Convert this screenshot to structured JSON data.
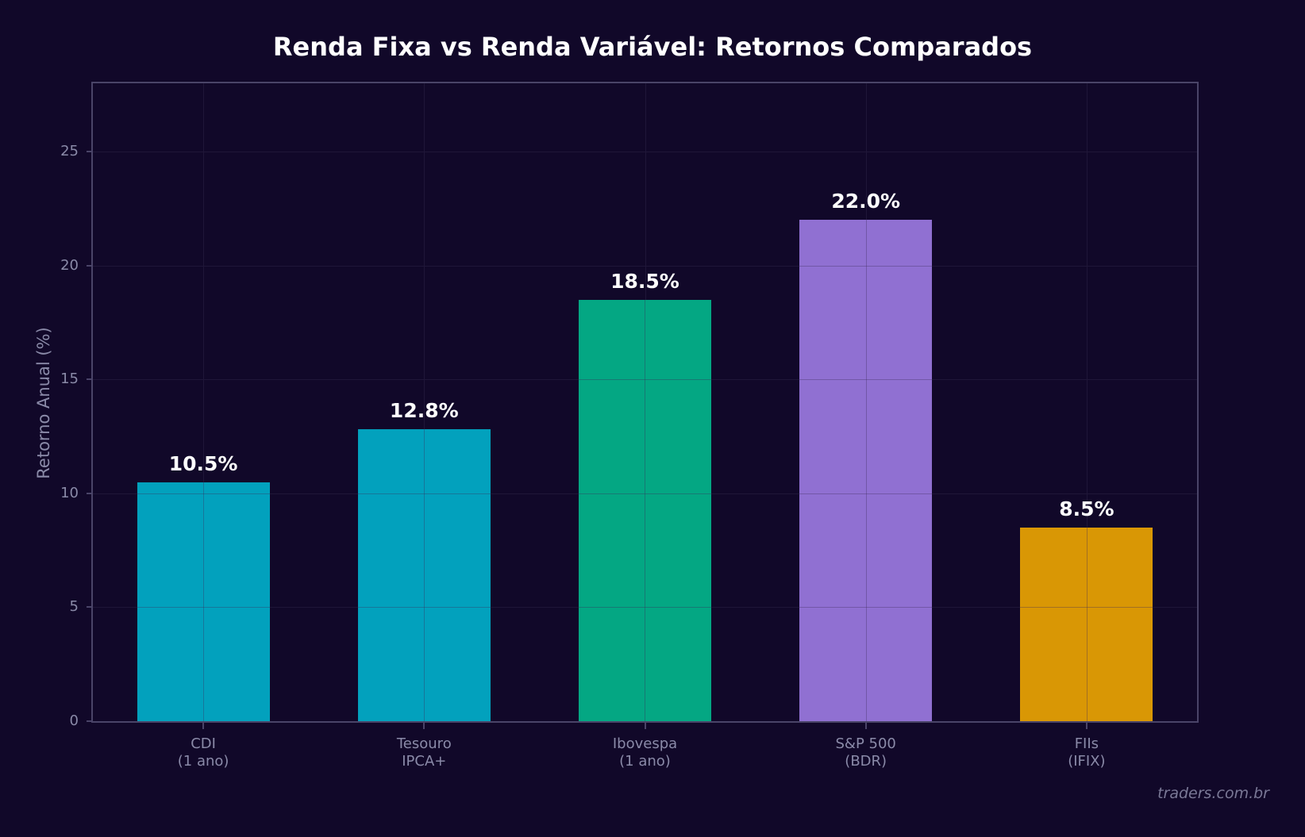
{
  "chart_data": {
    "type": "bar",
    "title": "Renda Fixa vs Renda Variável: Retornos Comparados",
    "xlabel": "",
    "ylabel": "Retorno Anual (%)",
    "ylim": [
      0,
      28
    ],
    "yticks": [
      0,
      5,
      10,
      15,
      20,
      25
    ],
    "grid": true,
    "categories": [
      "CDI\n(1 ano)",
      "Tesouro\nIPCA+",
      "Ibovespa\n(1 ano)",
      "S&P 500\n(BDR)",
      "FIIs\n(IFIX)"
    ],
    "values": [
      10.5,
      12.8,
      18.5,
      22.0,
      8.5
    ],
    "value_labels": [
      "10.5%",
      "12.8%",
      "18.5%",
      "22.0%",
      "8.5%"
    ],
    "colors": [
      "#02a1bd",
      "#02a1bd",
      "#04a783",
      "#9070d2",
      "#d99705"
    ]
  },
  "ytick_labels": [
    "0",
    "5",
    "10",
    "15",
    "20",
    "25"
  ],
  "watermark": "traders.com.br",
  "colors": {
    "background": "#110829",
    "frame": "#4a4468",
    "tick_text": "#8a8aa8"
  }
}
